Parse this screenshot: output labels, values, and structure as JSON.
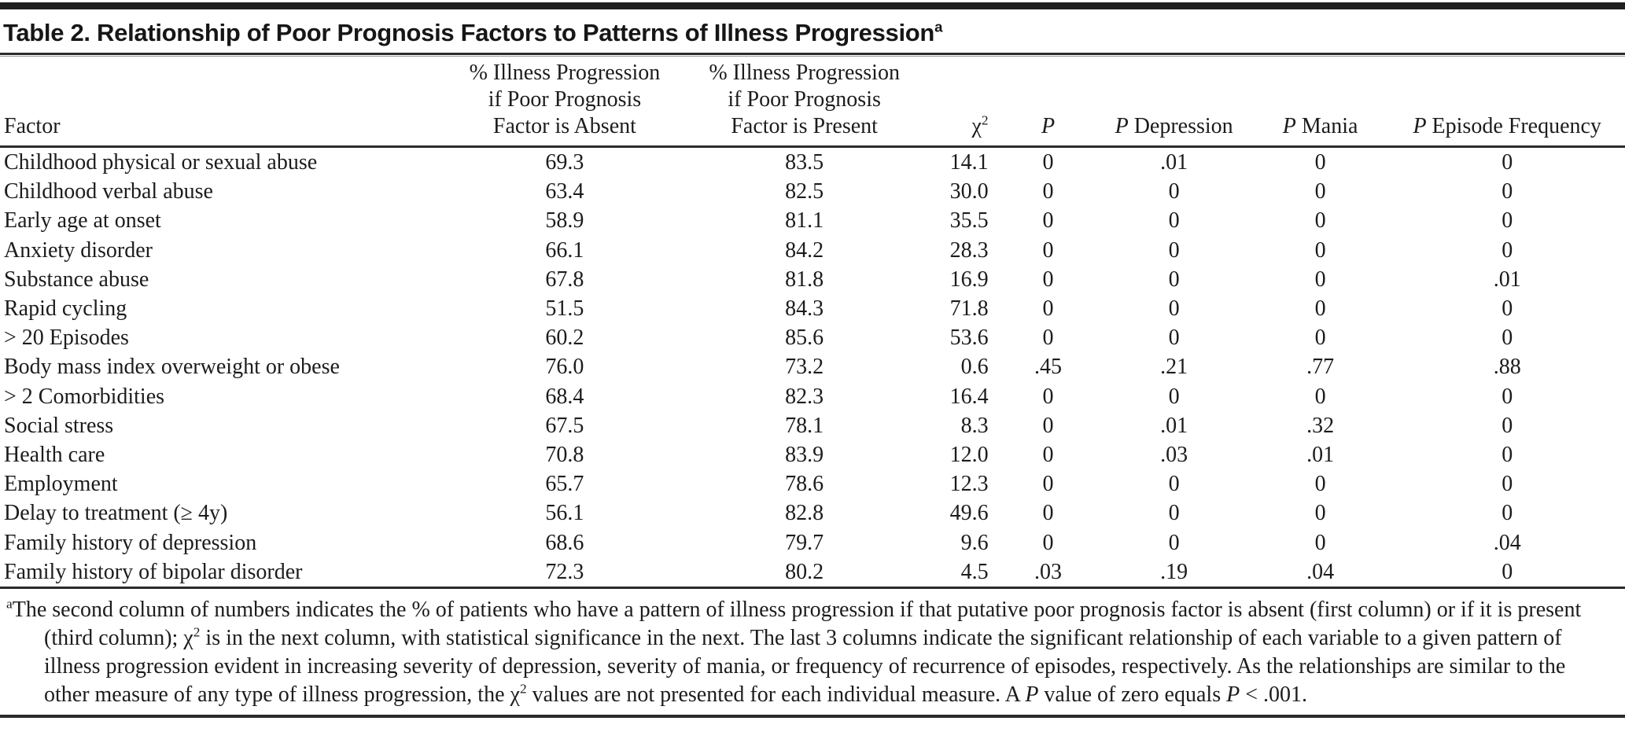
{
  "page": {
    "background": "#ffffff",
    "text_color": "#1c1c1c",
    "rule_color": "#2b2b2b"
  },
  "title": {
    "label": "Table 2. Relationship of Poor Prognosis Factors to Patterns of Illness Progression",
    "superscript": "a"
  },
  "table": {
    "columns": [
      {
        "id": "factor",
        "align": "left",
        "header": {
          "type": "plain",
          "text": "Factor"
        }
      },
      {
        "id": "absent",
        "align": "center",
        "header": {
          "type": "lines",
          "lines": [
            "% Illness Progression",
            "if Poor Prognosis",
            "Factor is Absent"
          ]
        }
      },
      {
        "id": "present",
        "align": "center",
        "header": {
          "type": "lines",
          "lines": [
            "% Illness Progression",
            "if Poor Prognosis",
            "Factor is Present"
          ]
        }
      },
      {
        "id": "chi2",
        "align": "right",
        "header": {
          "type": "rich",
          "parts": [
            {
              "style": "normal",
              "text": "χ"
            },
            {
              "style": "sup",
              "text": "2"
            }
          ]
        }
      },
      {
        "id": "p",
        "align": "center",
        "header": {
          "type": "rich",
          "parts": [
            {
              "style": "italic",
              "text": "P"
            }
          ]
        }
      },
      {
        "id": "p_depression",
        "align": "center",
        "header": {
          "type": "rich",
          "parts": [
            {
              "style": "italic",
              "text": "P"
            },
            {
              "style": "normal",
              "text": " Depression"
            }
          ]
        }
      },
      {
        "id": "p_mania",
        "align": "center",
        "header": {
          "type": "rich",
          "parts": [
            {
              "style": "italic",
              "text": "P"
            },
            {
              "style": "normal",
              "text": " Mania"
            }
          ]
        }
      },
      {
        "id": "p_episode_frequency",
        "align": "center",
        "header": {
          "type": "rich",
          "parts": [
            {
              "style": "italic",
              "text": "P"
            },
            {
              "style": "normal",
              "text": " Episode Frequency"
            }
          ]
        }
      }
    ],
    "rows": [
      {
        "factor": "Childhood physical or sexual abuse",
        "absent": "69.3",
        "present": "83.5",
        "chi2": "14.1",
        "p": "0",
        "p_depression": ".01",
        "p_mania": "0",
        "p_episode_frequency": "0"
      },
      {
        "factor": "Childhood verbal abuse",
        "absent": "63.4",
        "present": "82.5",
        "chi2": "30.0",
        "p": "0",
        "p_depression": "0",
        "p_mania": "0",
        "p_episode_frequency": "0"
      },
      {
        "factor": "Early age at onset",
        "absent": "58.9",
        "present": "81.1",
        "chi2": "35.5",
        "p": "0",
        "p_depression": "0",
        "p_mania": "0",
        "p_episode_frequency": "0"
      },
      {
        "factor": "Anxiety disorder",
        "absent": "66.1",
        "present": "84.2",
        "chi2": "28.3",
        "p": "0",
        "p_depression": "0",
        "p_mania": "0",
        "p_episode_frequency": "0"
      },
      {
        "factor": "Substance abuse",
        "absent": "67.8",
        "present": "81.8",
        "chi2": "16.9",
        "p": "0",
        "p_depression": "0",
        "p_mania": "0",
        "p_episode_frequency": ".01"
      },
      {
        "factor": "Rapid cycling",
        "absent": "51.5",
        "present": "84.3",
        "chi2": "71.8",
        "p": "0",
        "p_depression": "0",
        "p_mania": "0",
        "p_episode_frequency": "0"
      },
      {
        "factor": "> 20 Episodes",
        "absent": "60.2",
        "present": "85.6",
        "chi2": "53.6",
        "p": "0",
        "p_depression": "0",
        "p_mania": "0",
        "p_episode_frequency": "0"
      },
      {
        "factor": "Body mass index overweight or obese",
        "absent": "76.0",
        "present": "73.2",
        "chi2": "0.6",
        "p": ".45",
        "p_depression": ".21",
        "p_mania": ".77",
        "p_episode_frequency": ".88"
      },
      {
        "factor": "> 2 Comorbidities",
        "absent": "68.4",
        "present": "82.3",
        "chi2": "16.4",
        "p": "0",
        "p_depression": "0",
        "p_mania": "0",
        "p_episode_frequency": "0"
      },
      {
        "factor": "Social stress",
        "absent": "67.5",
        "present": "78.1",
        "chi2": "8.3",
        "p": "0",
        "p_depression": ".01",
        "p_mania": ".32",
        "p_episode_frequency": "0"
      },
      {
        "factor": "Health care",
        "absent": "70.8",
        "present": "83.9",
        "chi2": "12.0",
        "p": "0",
        "p_depression": ".03",
        "p_mania": ".01",
        "p_episode_frequency": "0"
      },
      {
        "factor": "Employment",
        "absent": "65.7",
        "present": "78.6",
        "chi2": "12.3",
        "p": "0",
        "p_depression": "0",
        "p_mania": "0",
        "p_episode_frequency": "0"
      },
      {
        "factor": "Delay to treatment (≥ 4y)",
        "absent": "56.1",
        "present": "82.8",
        "chi2": "49.6",
        "p": "0",
        "p_depression": "0",
        "p_mania": "0",
        "p_episode_frequency": "0"
      },
      {
        "factor": "Family history of depression",
        "absent": "68.6",
        "present": "79.7",
        "chi2": "9.6",
        "p": "0",
        "p_depression": "0",
        "p_mania": "0",
        "p_episode_frequency": ".04"
      },
      {
        "factor": "Family history of bipolar disorder",
        "absent": "72.3",
        "present": "80.2",
        "chi2": "4.5",
        "p": ".03",
        "p_depression": ".19",
        "p_mania": ".04",
        "p_episode_frequency": "0"
      }
    ]
  },
  "footnote": {
    "segments": [
      {
        "style": "sup",
        "text": "a"
      },
      {
        "style": "normal",
        "text": "The second column of numbers indicates the % of patients who have a pattern of illness progression if that putative poor prognosis factor is absent (first column) or if it is present (third column); "
      },
      {
        "style": "normal",
        "text": "χ"
      },
      {
        "style": "sup",
        "text": "2"
      },
      {
        "style": "normal",
        "text": " is in the next column, with statistical significance in the next. The last 3 columns indicate the significant relationship of each variable to a given pattern of illness progression evident in increasing severity of depression, severity of mania, or frequency of recurrence of episodes, respectively. As the relationships are similar to the other measure of any type of illness progression, the "
      },
      {
        "style": "normal",
        "text": "χ"
      },
      {
        "style": "sup",
        "text": "2"
      },
      {
        "style": "normal",
        "text": " values are not presented for each individual measure. A "
      },
      {
        "style": "italic",
        "text": "P"
      },
      {
        "style": "normal",
        "text": " value of zero equals "
      },
      {
        "style": "italic",
        "text": "P"
      },
      {
        "style": "normal",
        "text": " < .001."
      }
    ]
  }
}
